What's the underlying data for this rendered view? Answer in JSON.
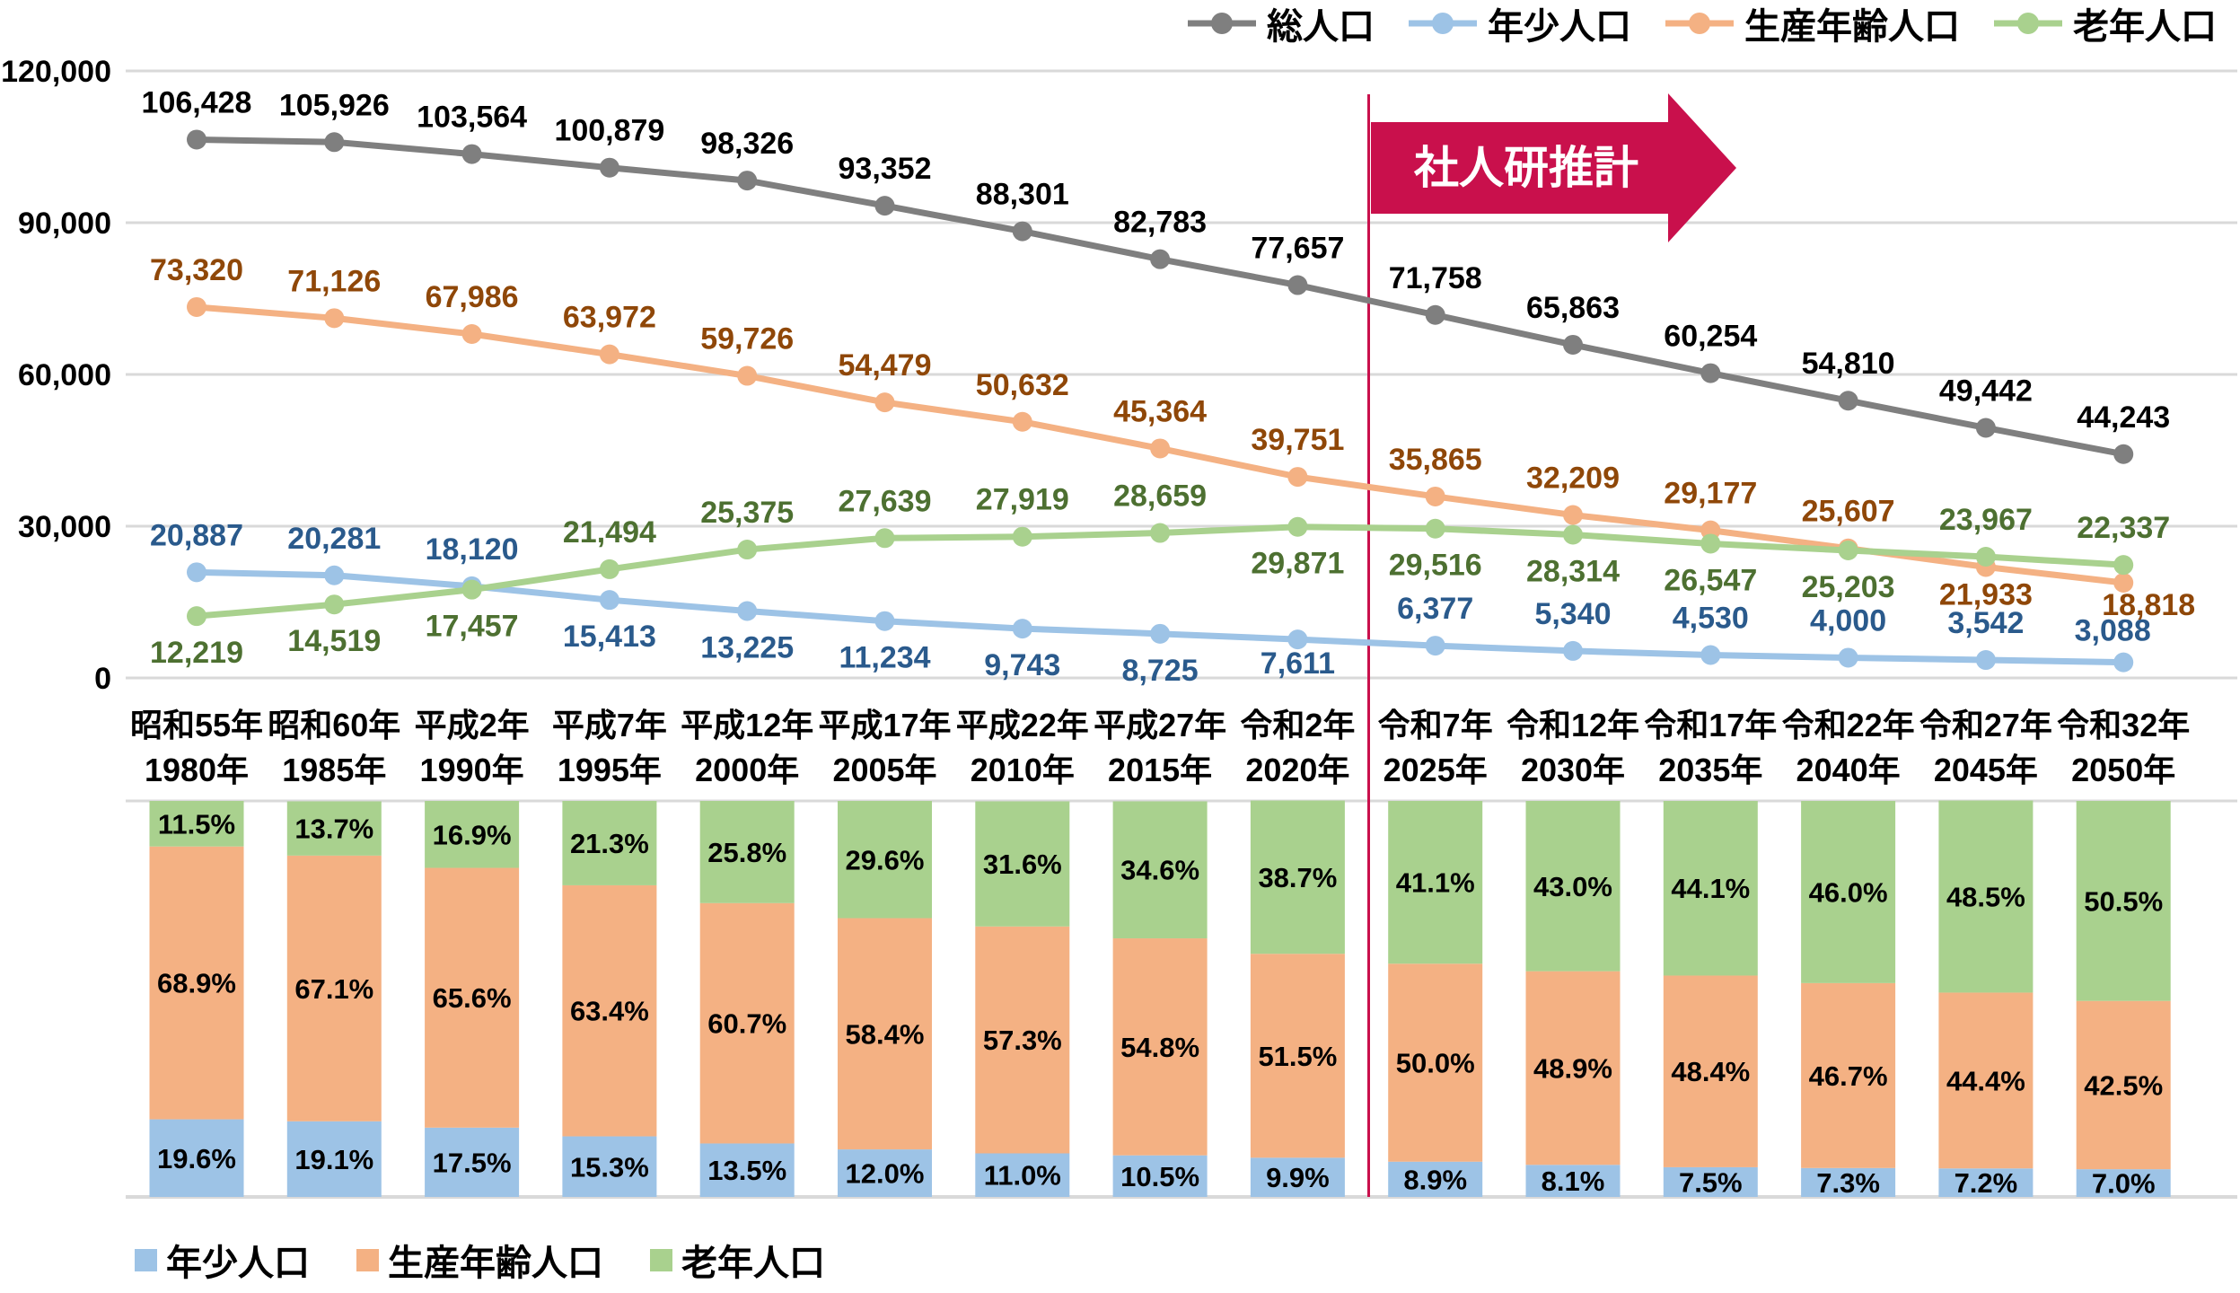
{
  "legend_top": {
    "items": [
      {
        "id": "total",
        "label": "総人口",
        "color": "#7F7F7F"
      },
      {
        "id": "young",
        "label": "年少人口",
        "color": "#9DC3E6"
      },
      {
        "id": "working",
        "label": "生産年齢人口",
        "color": "#F4B183"
      },
      {
        "id": "elderly",
        "label": "老年人口",
        "color": "#A9D18E"
      }
    ]
  },
  "legend_bottom": {
    "items": [
      {
        "id": "young",
        "label": "年少人口",
        "color": "#9DC3E6"
      },
      {
        "id": "working",
        "label": "生産年齢人口",
        "color": "#F4B183"
      },
      {
        "id": "elderly",
        "label": "老年人口",
        "color": "#A9D18E"
      }
    ]
  },
  "banner": {
    "label": "社人研推計",
    "color": "#C9104C"
  },
  "chart_data": {
    "type": "combo: line (population, persons) + 100% stacked bar (share)",
    "categories": [
      {
        "era": "昭和55年",
        "year": "1980年"
      },
      {
        "era": "昭和60年",
        "year": "1985年"
      },
      {
        "era": "平成2年",
        "year": "1990年"
      },
      {
        "era": "平成7年",
        "year": "1995年"
      },
      {
        "era": "平成12年",
        "year": "2000年"
      },
      {
        "era": "平成17年",
        "year": "2005年"
      },
      {
        "era": "平成22年",
        "year": "2010年"
      },
      {
        "era": "平成27年",
        "year": "2015年"
      },
      {
        "era": "令和2年",
        "year": "2020年"
      },
      {
        "era": "令和7年",
        "year": "2025年"
      },
      {
        "era": "令和12年",
        "year": "2030年"
      },
      {
        "era": "令和17年",
        "year": "2035年"
      },
      {
        "era": "令和22年",
        "year": "2040年"
      },
      {
        "era": "令和27年",
        "year": "2045年"
      },
      {
        "era": "令和32年",
        "year": "2050年"
      }
    ],
    "y_axis": {
      "ticks": [
        0,
        30000,
        60000,
        90000,
        120000
      ],
      "max": 120000
    },
    "estimate_boundary_after_index": 8,
    "line_series": [
      {
        "id": "total",
        "name": "総人口",
        "color": "#7F7F7F",
        "label_color": "#000000",
        "values": [
          106428,
          105926,
          103564,
          100879,
          98326,
          93352,
          88301,
          82783,
          77657,
          71758,
          65863,
          60254,
          54810,
          49442,
          44243
        ],
        "label_side": [
          "above",
          "above",
          "above",
          "above",
          "above",
          "above",
          "above",
          "above",
          "above",
          "above",
          "above",
          "above",
          "above",
          "above",
          "above"
        ],
        "label_offset": {}
      },
      {
        "id": "working",
        "name": "生産年齢人口",
        "color": "#F4B183",
        "label_color": "#8F4708",
        "values": [
          73320,
          71126,
          67986,
          63972,
          59726,
          54479,
          50632,
          45364,
          39751,
          35865,
          32209,
          29177,
          25607,
          21933,
          18818
        ],
        "label_side": [
          "above",
          "above",
          "above",
          "above",
          "above",
          "above",
          "above",
          "above",
          "above",
          "above",
          "above",
          "above",
          "above",
          "below",
          "below"
        ],
        "label_offset": {
          "13": [
            0,
            -10
          ],
          "14": [
            28,
            -16
          ]
        }
      },
      {
        "id": "young",
        "name": "年少人口",
        "color": "#9DC3E6",
        "label_color": "#2A5A8C",
        "values": [
          20887,
          20281,
          18120,
          15413,
          13225,
          11234,
          9743,
          8725,
          7611,
          6377,
          5340,
          4530,
          4000,
          3542,
          3088
        ],
        "label_side": [
          "above",
          "above",
          "above",
          "below",
          "below",
          "below",
          "below",
          "below",
          "below",
          "above",
          "above",
          "above",
          "above",
          "above",
          "above"
        ],
        "label_offset": {
          "8": [
            0,
            -14
          ],
          "14": [
            -12,
            6
          ]
        }
      },
      {
        "id": "elderly",
        "name": "老年人口",
        "color": "#A9D18E",
        "label_color": "#4D7031",
        "values": [
          12219,
          14519,
          17457,
          21494,
          25375,
          27639,
          27919,
          28659,
          29871,
          29516,
          28314,
          26547,
          25203,
          23967,
          22337
        ],
        "label_side": [
          "below",
          "below",
          "below",
          "above",
          "above",
          "above",
          "above",
          "above",
          "below",
          "below",
          "below",
          "below",
          "below",
          "above",
          "above"
        ],
        "label_offset": {}
      }
    ],
    "bar_series": [
      {
        "id": "young",
        "name": "年少人口",
        "color": "#9DC3E6",
        "values": [
          19.6,
          19.1,
          17.5,
          15.3,
          13.5,
          12.0,
          11.0,
          10.5,
          9.9,
          8.9,
          8.1,
          7.5,
          7.3,
          7.2,
          7.0
        ]
      },
      {
        "id": "working",
        "name": "生産年齢人口",
        "color": "#F4B183",
        "values": [
          68.9,
          67.1,
          65.6,
          63.4,
          60.7,
          58.4,
          57.3,
          54.8,
          51.5,
          50.0,
          48.9,
          48.4,
          46.7,
          44.4,
          42.5
        ]
      },
      {
        "id": "elderly",
        "name": "老年人口",
        "color": "#A9D18E",
        "values": [
          11.5,
          13.7,
          16.9,
          21.3,
          25.8,
          29.6,
          31.6,
          34.6,
          38.7,
          41.1,
          43.0,
          44.1,
          46.0,
          48.5,
          50.5
        ]
      }
    ]
  }
}
